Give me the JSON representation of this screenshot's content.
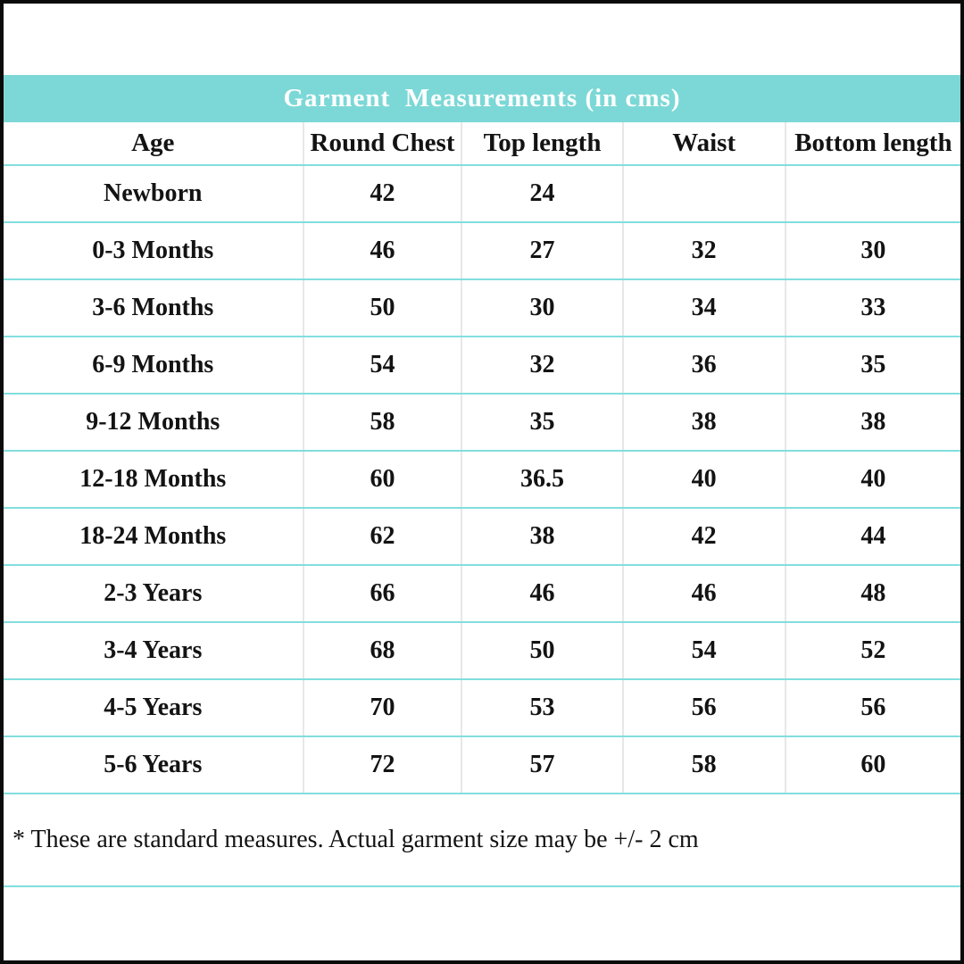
{
  "title": "Garment  Measurements (in cms)",
  "note": "* These are standard measures. Actual garment size may be +/- 2 cm",
  "colors": {
    "header_bg": "#7CD8D6",
    "row_divider": "#82DEDE",
    "column_divider": "#E7E7E7",
    "outer_border": "#0A0A0A",
    "title_text": "#FFFFFF",
    "table_text": "#131313"
  },
  "chart_data": {
    "type": "table",
    "title": "Garment  Measurements (in cms)",
    "columns": [
      "Age",
      "Round Chest",
      "Top length",
      "Waist",
      "Bottom length"
    ],
    "rows": [
      [
        "Newborn",
        "42",
        "24",
        "",
        ""
      ],
      [
        "0-3 Months",
        "46",
        "27",
        "32",
        "30"
      ],
      [
        "3-6 Months",
        "50",
        "30",
        "34",
        "33"
      ],
      [
        "6-9 Months",
        "54",
        "32",
        "36",
        "35"
      ],
      [
        "9-12 Months",
        "58",
        "35",
        "38",
        "38"
      ],
      [
        "12-18 Months",
        "60",
        "36.5",
        "40",
        "40"
      ],
      [
        "18-24 Months",
        "62",
        "38",
        "42",
        "44"
      ],
      [
        "2-3 Years",
        "66",
        "46",
        "46",
        "48"
      ],
      [
        "3-4 Years",
        "68",
        "50",
        "54",
        "52"
      ],
      [
        "4-5 Years",
        "70",
        "53",
        "56",
        "56"
      ],
      [
        "5-6 Years",
        "72",
        "57",
        "58",
        "60"
      ]
    ],
    "footnote": "* These are standard measures. Actual garment size may be +/- 2 cm"
  }
}
